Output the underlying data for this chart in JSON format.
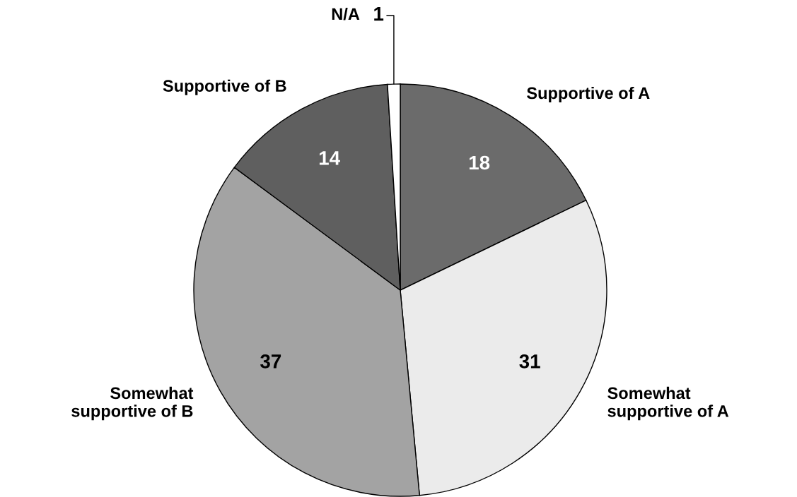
{
  "chart_data": {
    "type": "pie",
    "categories": [
      "Supportive of A",
      "Somewhat\nsupportive of A",
      "Somewhat\nsupportive of B",
      "Supportive of B",
      "N/A"
    ],
    "values": [
      18,
      31,
      37,
      14,
      1
    ],
    "colors": [
      "#6b6b6b",
      "#ebebeb",
      "#a3a3a3",
      "#5f5f5f",
      "#ffffff"
    ],
    "data_labels": true
  }
}
